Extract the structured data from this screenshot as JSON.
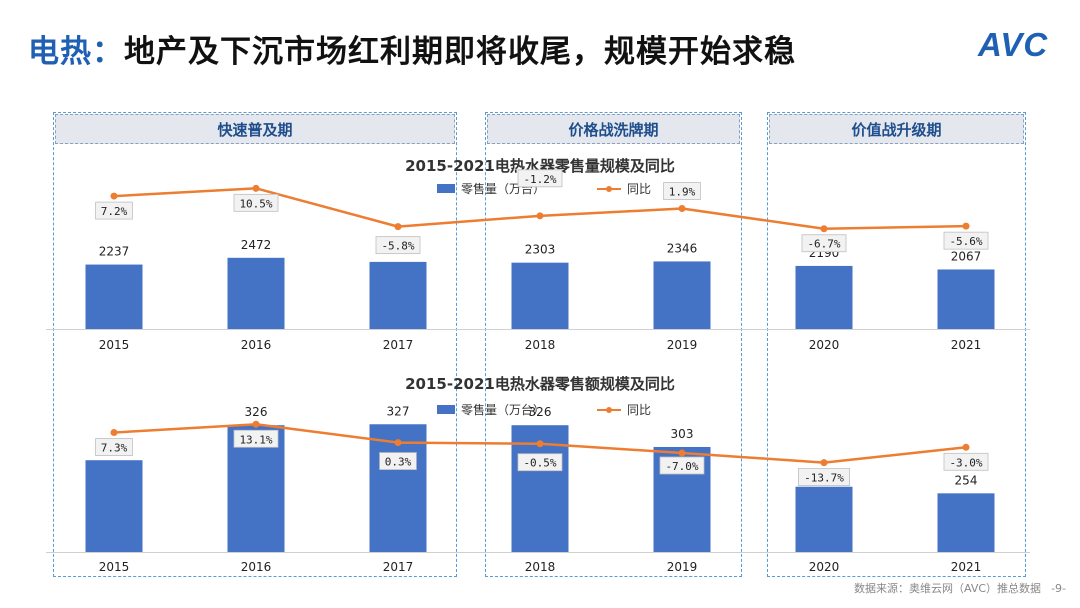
{
  "header": {
    "title_prefix": "电热：",
    "title_rest": "地产及下沉市场红利期即将收尾，规模开始求稳",
    "logo_text": "AVC"
  },
  "phases": [
    {
      "label": "快速普及期"
    },
    {
      "label": "价格战洗牌期"
    },
    {
      "label": "价值战升级期"
    }
  ],
  "colors": {
    "bar": "#4472c4",
    "line": "#ed7d31",
    "accent": "#1f5fb4"
  },
  "chart_data": [
    {
      "type": "bar",
      "title": "2015-2021电热水器零售量规模及同比",
      "categories": [
        "2015",
        "2016",
        "2017",
        "2018",
        "2019",
        "2020",
        "2021"
      ],
      "series": [
        {
          "name": "零售量（万台）",
          "kind": "bar",
          "values": [
            2237,
            2472,
            2330,
            2303,
            2346,
            2190,
            2067
          ]
        },
        {
          "name": "同比",
          "kind": "line",
          "values": [
            7.2,
            10.5,
            -5.8,
            -1.2,
            1.9,
            -6.7,
            -5.6
          ],
          "labels": [
            "7.2%",
            "10.5%",
            "-5.8%",
            "-1.2%",
            "1.9%",
            "-6.7%",
            "-5.6%"
          ]
        }
      ],
      "legend": "top"
    },
    {
      "type": "bar",
      "title": "2015-2021电热水器零售额规模及同比",
      "categories": [
        "2015",
        "2016",
        "2017",
        "2018",
        "2019",
        "2020",
        "2021"
      ],
      "series": [
        {
          "name": "零售量（万台）",
          "kind": "bar",
          "values": [
            289,
            326,
            327,
            326,
            303,
            261,
            254
          ]
        },
        {
          "name": "同比",
          "kind": "line",
          "values": [
            7.3,
            13.1,
            0.3,
            -0.5,
            -7.0,
            -13.7,
            -3.0
          ],
          "labels": [
            "7.3%",
            "13.1%",
            "0.3%",
            "-0.5%",
            "-7.0%",
            "-13.7%",
            "-3.0%"
          ]
        }
      ],
      "legend": "top"
    }
  ],
  "footer": {
    "source": "数据来源：奥维云网（AVC）推总数据",
    "page": "-9-"
  }
}
